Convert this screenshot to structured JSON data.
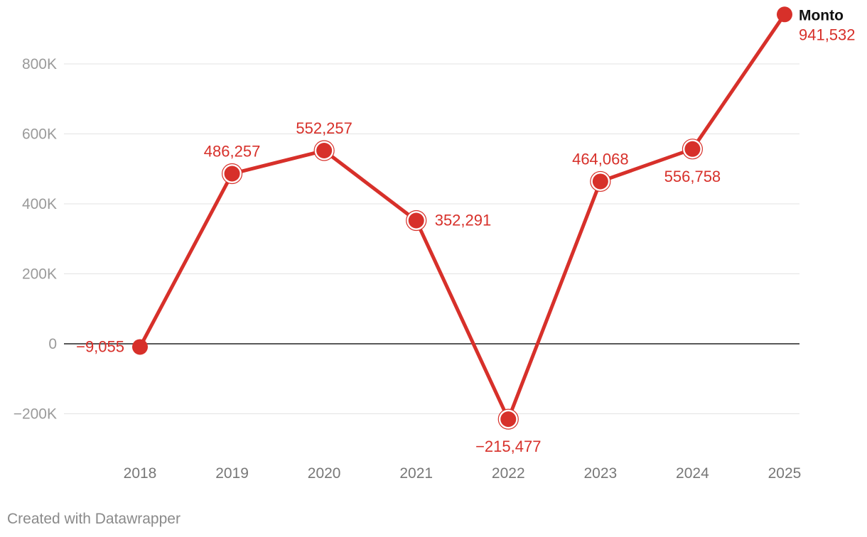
{
  "chart_data": {
    "type": "line",
    "title": "",
    "xlabel": "",
    "ylabel": "",
    "categories": [
      "2018",
      "2019",
      "2020",
      "2021",
      "2022",
      "2023",
      "2024",
      "2025"
    ],
    "series": [
      {
        "name": "Monto",
        "values": [
          -9055,
          486257,
          552257,
          352291,
          -215477,
          464068,
          556758,
          941532
        ],
        "labels": [
          "−9,055",
          "486,257",
          "552,257",
          "352,291",
          "−215,477",
          "464,068",
          "556,758",
          "941,532"
        ],
        "color": "#d7302a"
      }
    ],
    "yticks": [
      {
        "value": 800000,
        "label": "800K"
      },
      {
        "value": 600000,
        "label": "600K"
      },
      {
        "value": 400000,
        "label": "400K"
      },
      {
        "value": 200000,
        "label": "200K"
      },
      {
        "value": 0,
        "label": "0"
      },
      {
        "value": -200000,
        "label": "−200K"
      }
    ],
    "ylim": [
      -200000,
      800000
    ],
    "grid": true,
    "legend": "end-of-line label"
  },
  "footer": {
    "credit": "Created with Datawrapper"
  },
  "colors": {
    "series": "#d7302a",
    "grid": "#e3e3e3",
    "zero_line": "#222222",
    "tick_text": "#9a9a9a",
    "axis_text": "#777777"
  }
}
